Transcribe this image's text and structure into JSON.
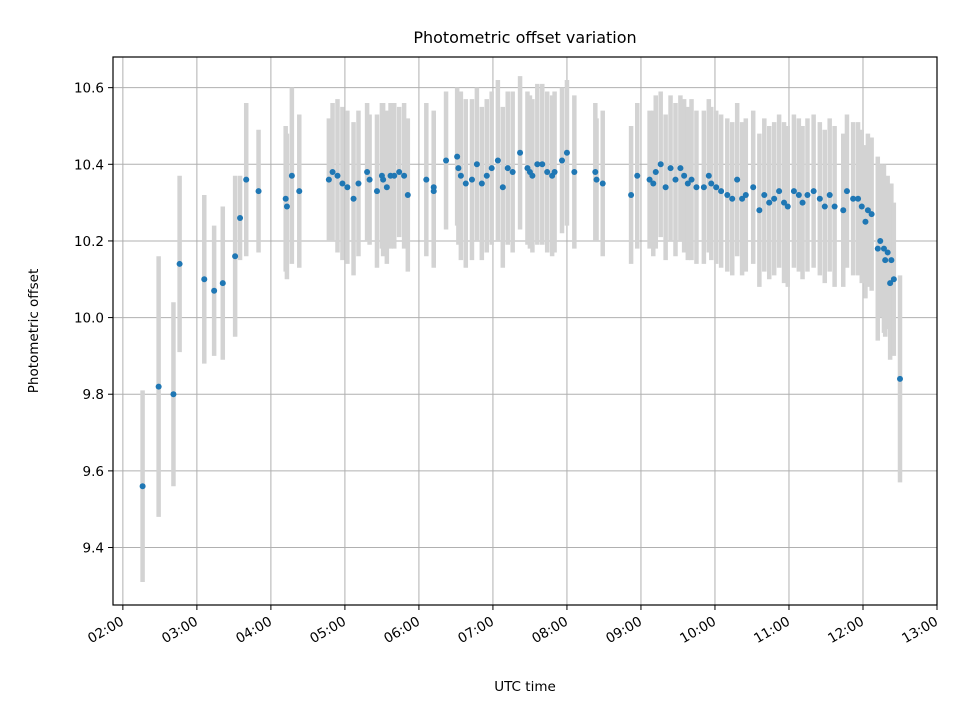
{
  "chart_data": {
    "type": "scatter",
    "title": "Photometric offset variation",
    "xlabel": "UTC time",
    "ylabel": "Photometric offset",
    "x_unit": "UTC hour",
    "xlim": [
      "01:52",
      "13:00"
    ],
    "ylim": [
      9.25,
      10.68
    ],
    "x_ticks": [
      "02:00",
      "03:00",
      "04:00",
      "05:00",
      "06:00",
      "07:00",
      "08:00",
      "09:00",
      "10:00",
      "11:00",
      "12:00",
      "13:00"
    ],
    "y_ticks": [
      "9.4",
      "9.6",
      "9.8",
      "10.0",
      "10.2",
      "10.4",
      "10.6"
    ],
    "grid": true,
    "colors": {
      "point": "#1f77b4",
      "errorbar": "#d3d3d3"
    },
    "series": [
      {
        "x": [
          "02:16",
          "02:29",
          "02:41",
          "02:46",
          "03:06",
          "03:14",
          "03:21",
          "03:31",
          "03:35",
          "03:40",
          "03:50",
          "04:12",
          "04:13",
          "04:17",
          "04:23",
          "04:47",
          "04:50",
          "04:54",
          "04:58",
          "05:02",
          "05:07",
          "05:11",
          "05:18",
          "05:20",
          "05:26",
          "05:30",
          "05:31",
          "05:34",
          "05:37",
          "05:40",
          "05:44",
          "05:48",
          "05:51",
          "06:06",
          "06:12",
          "06:12",
          "06:22",
          "06:31",
          "06:32",
          "06:34",
          "06:38",
          "06:43",
          "06:47",
          "06:51",
          "06:55",
          "06:59",
          "07:04",
          "07:08",
          "07:12",
          "07:16",
          "07:22",
          "07:28",
          "07:30",
          "07:32",
          "07:36",
          "07:40",
          "07:44",
          "07:48",
          "07:50",
          "07:56",
          "08:00",
          "08:06",
          "08:23",
          "08:24",
          "08:29",
          "08:52",
          "08:57",
          "09:07",
          "09:10",
          "09:12",
          "09:16",
          "09:20",
          "09:24",
          "09:28",
          "09:32",
          "09:35",
          "09:38",
          "09:41",
          "09:45",
          "09:51",
          "09:55",
          "09:57",
          "10:01",
          "10:05",
          "10:10",
          "10:14",
          "10:18",
          "10:22",
          "10:25",
          "10:31",
          "10:36",
          "10:40",
          "10:44",
          "10:48",
          "10:52",
          "10:56",
          "10:59",
          "11:04",
          "11:08",
          "11:11",
          "11:15",
          "11:20",
          "11:25",
          "11:29",
          "11:33",
          "11:37",
          "11:44",
          "11:47",
          "11:52",
          "11:56",
          "11:59",
          "12:02",
          "12:04",
          "12:07",
          "12:12",
          "12:14",
          "12:17",
          "12:18",
          "12:20",
          "12:22",
          "12:23",
          "12:25",
          "12:30"
        ],
        "y": [
          9.56,
          9.82,
          9.8,
          10.14,
          10.1,
          10.07,
          10.09,
          10.16,
          10.26,
          10.36,
          10.33,
          10.31,
          10.29,
          10.37,
          10.33,
          10.36,
          10.38,
          10.37,
          10.35,
          10.34,
          10.31,
          10.35,
          10.38,
          10.36,
          10.33,
          10.37,
          10.36,
          10.34,
          10.37,
          10.37,
          10.38,
          10.37,
          10.32,
          10.36,
          10.34,
          10.33,
          10.41,
          10.42,
          10.39,
          10.37,
          10.35,
          10.36,
          10.4,
          10.35,
          10.37,
          10.39,
          10.41,
          10.34,
          10.39,
          10.38,
          10.43,
          10.39,
          10.38,
          10.37,
          10.4,
          10.4,
          10.38,
          10.37,
          10.38,
          10.41,
          10.43,
          10.38,
          10.38,
          10.36,
          10.35,
          10.32,
          10.37,
          10.36,
          10.35,
          10.38,
          10.4,
          10.34,
          10.39,
          10.36,
          10.39,
          10.37,
          10.35,
          10.36,
          10.34,
          10.34,
          10.37,
          10.35,
          10.34,
          10.33,
          10.32,
          10.31,
          10.36,
          10.31,
          10.32,
          10.34,
          10.28,
          10.32,
          10.3,
          10.31,
          10.33,
          10.3,
          10.29,
          10.33,
          10.32,
          10.3,
          10.32,
          10.33,
          10.31,
          10.29,
          10.32,
          10.29,
          10.28,
          10.33,
          10.31,
          10.31,
          10.29,
          10.25,
          10.28,
          10.27,
          10.18,
          10.2,
          10.18,
          10.15,
          10.17,
          10.09,
          10.15,
          10.1,
          9.84
        ],
        "yerr": [
          0.25,
          0.34,
          0.24,
          0.23,
          0.22,
          0.17,
          0.2,
          0.21,
          0.11,
          0.2,
          0.16,
          0.19,
          0.19,
          0.23,
          0.2,
          0.16,
          0.18,
          0.2,
          0.2,
          0.2,
          0.2,
          0.19,
          0.18,
          0.17,
          0.2,
          0.19,
          0.2,
          0.2,
          0.19,
          0.19,
          0.17,
          0.19,
          0.2,
          0.2,
          0.2,
          0.2,
          0.18,
          0.18,
          0.2,
          0.22,
          0.22,
          0.21,
          0.2,
          0.2,
          0.2,
          0.2,
          0.21,
          0.21,
          0.2,
          0.21,
          0.2,
          0.2,
          0.2,
          0.2,
          0.21,
          0.21,
          0.21,
          0.21,
          0.21,
          0.19,
          0.19,
          0.2,
          0.18,
          0.16,
          0.19,
          0.18,
          0.19,
          0.18,
          0.19,
          0.2,
          0.19,
          0.19,
          0.19,
          0.2,
          0.19,
          0.2,
          0.2,
          0.21,
          0.2,
          0.2,
          0.2,
          0.2,
          0.2,
          0.2,
          0.2,
          0.2,
          0.2,
          0.2,
          0.2,
          0.2,
          0.2,
          0.2,
          0.2,
          0.2,
          0.2,
          0.21,
          0.21,
          0.2,
          0.2,
          0.2,
          0.2,
          0.2,
          0.2,
          0.2,
          0.2,
          0.21,
          0.2,
          0.2,
          0.2,
          0.2,
          0.2,
          0.2,
          0.2,
          0.2,
          0.24,
          0.2,
          0.22,
          0.2,
          0.2,
          0.2,
          0.2,
          0.2,
          0.27
        ]
      }
    ]
  }
}
